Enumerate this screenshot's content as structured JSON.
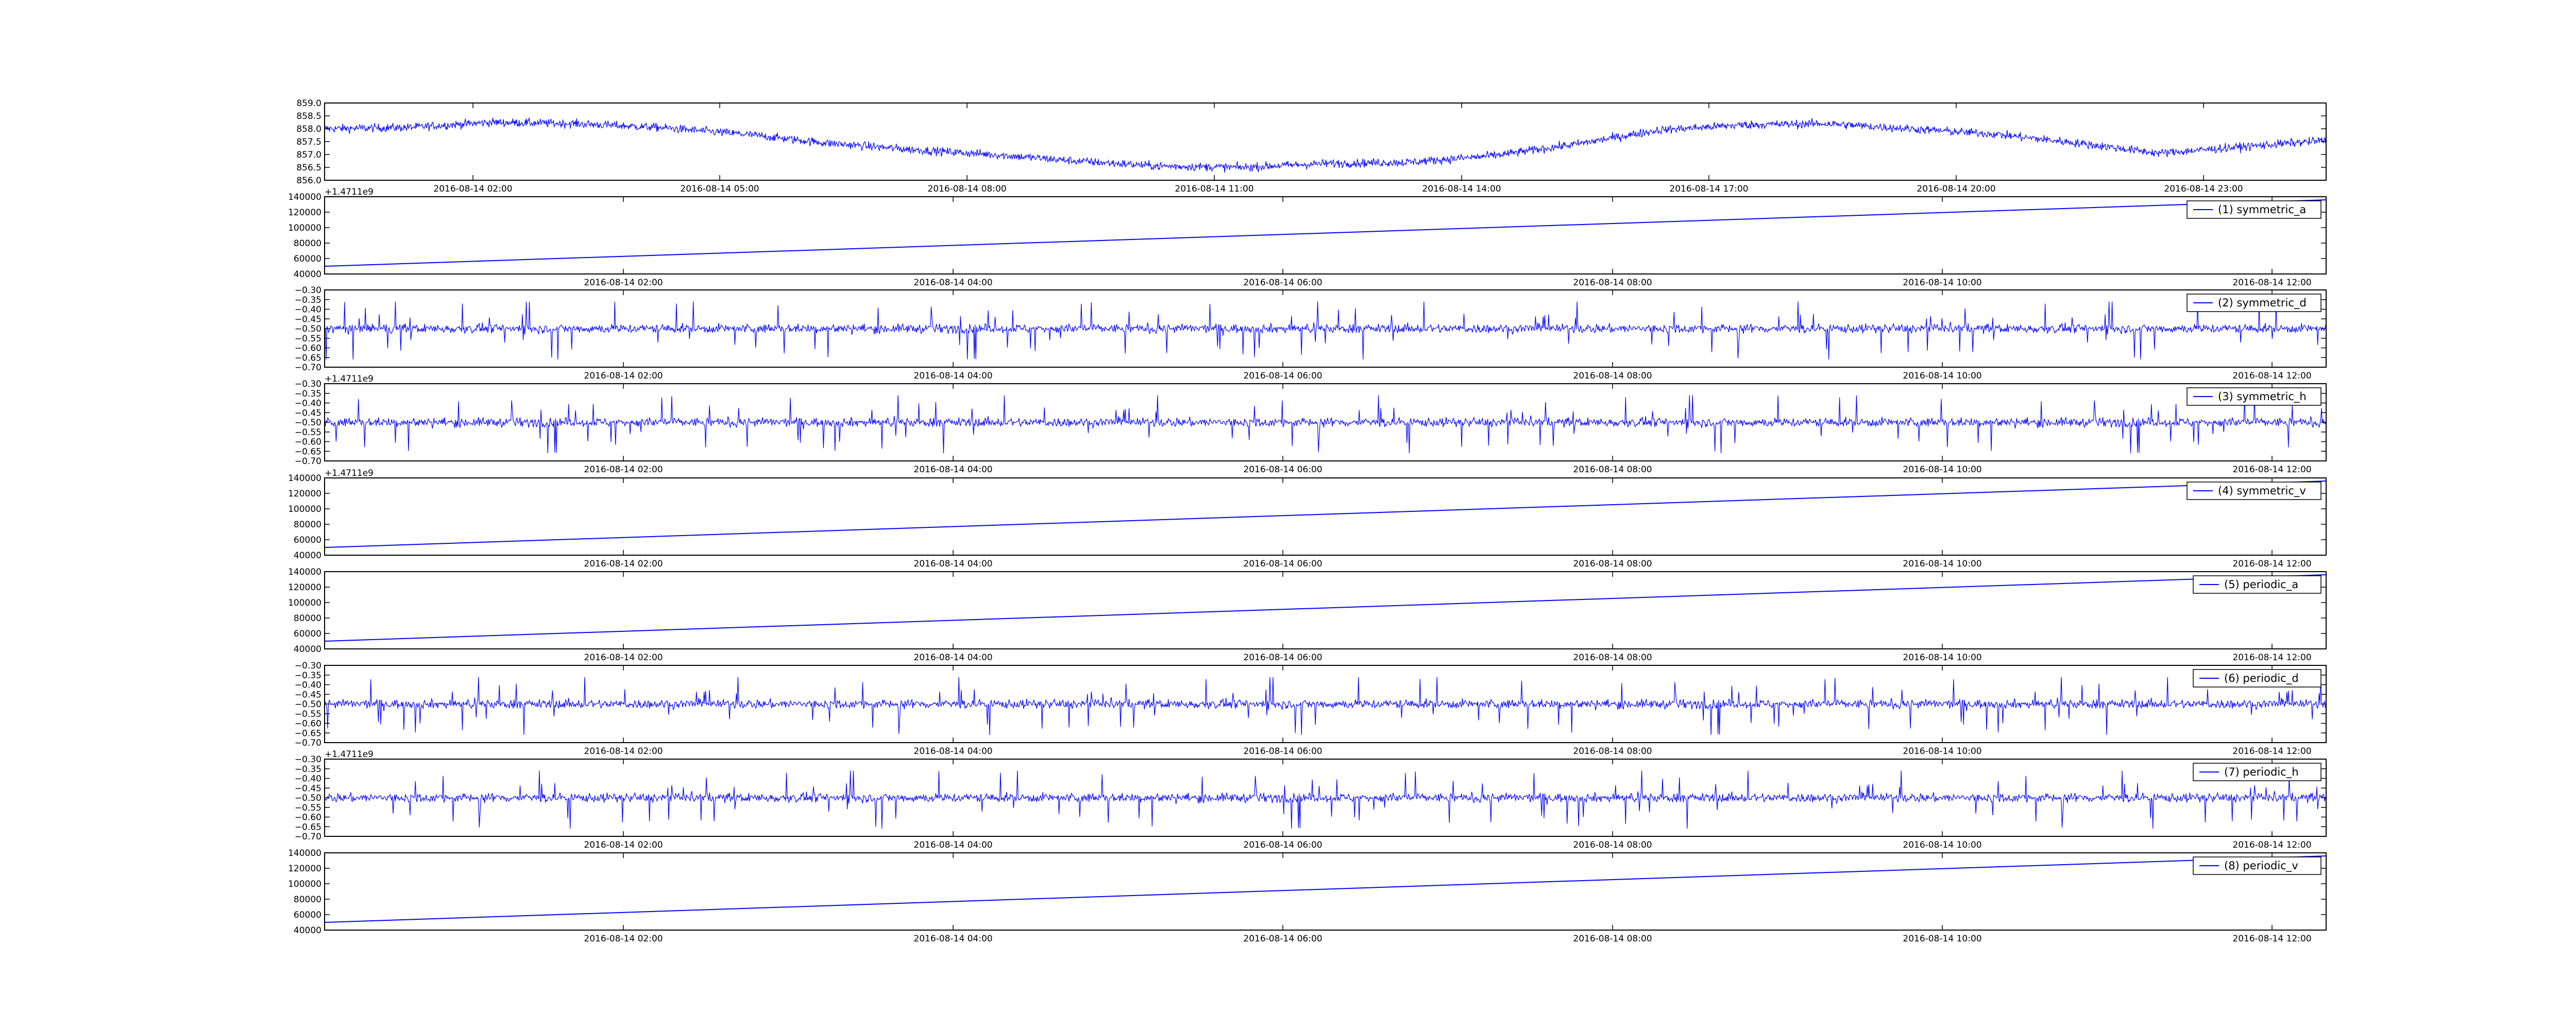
{
  "chart_data": [
    {
      "type": "line",
      "ylim": [
        856.0,
        859.0
      ],
      "yticks": [
        "856.0",
        "856.5",
        "857.0",
        "857.5",
        "858.0",
        "858.5",
        "859.0"
      ],
      "xticks": [
        "2016-08-14 02:00",
        "2016-08-14 05:00",
        "2016-08-14 08:00",
        "2016-08-14 11:00",
        "2016-08-14 14:00",
        "2016-08-14 17:00",
        "2016-08-14 20:00",
        "2016-08-14 23:00"
      ],
      "series": [
        {
          "color": "#0000ff",
          "x": [
            0,
            1,
            2,
            3,
            4,
            5,
            6,
            7,
            8,
            9,
            10,
            11,
            12,
            13,
            14,
            15,
            16,
            17,
            18,
            19,
            20,
            21,
            22,
            23,
            24
          ],
          "y": [
            858.0,
            858.05,
            858.25,
            858.2,
            858.05,
            857.8,
            857.45,
            857.2,
            857.0,
            856.75,
            856.55,
            856.5,
            856.65,
            856.7,
            856.95,
            857.4,
            857.95,
            858.15,
            858.2,
            858.0,
            857.8,
            857.45,
            857.05,
            857.3,
            857.55
          ]
        }
      ],
      "legend": ""
    },
    {
      "type": "line",
      "ylim": [
        40000,
        140000
      ],
      "offset_label": "+1.4711e9",
      "yticks": [
        "40000",
        "60000",
        "80000",
        "100000",
        "120000",
        "140000"
      ],
      "xticks": [
        "2016-08-14 02:00",
        "2016-08-14 04:00",
        "2016-08-14 06:00",
        "2016-08-14 08:00",
        "2016-08-14 10:00",
        "2016-08-14 12:00"
      ],
      "series": [
        {
          "name": "(1) symmetric_a",
          "color": "#0000ff",
          "x": [
            0,
            1
          ],
          "y": [
            50000,
            136000
          ]
        }
      ],
      "legend": "top-right"
    },
    {
      "type": "line",
      "ylim": [
        -0.7,
        -0.3
      ],
      "yticks": [
        "−0.70",
        "−0.65",
        "−0.60",
        "−0.55",
        "−0.50",
        "−0.45",
        "−0.40",
        "−0.35",
        "−0.30"
      ],
      "xticks": [
        "2016-08-14 02:00",
        "2016-08-14 04:00",
        "2016-08-14 06:00",
        "2016-08-14 08:00",
        "2016-08-14 10:00",
        "2016-08-14 12:00"
      ],
      "series": [
        {
          "name": "(2) symmetric_d",
          "color": "#0000ff",
          "mean": -0.5,
          "band": 0.04,
          "spike_min": -0.66,
          "spike_max": -0.36
        }
      ],
      "legend": "top-right"
    },
    {
      "type": "line",
      "ylim": [
        -0.7,
        -0.3
      ],
      "offset_label": "+1.4711e9",
      "yticks": [
        "−0.70",
        "−0.65",
        "−0.60",
        "−0.55",
        "−0.50",
        "−0.45",
        "−0.40",
        "−0.35",
        "−0.30"
      ],
      "xticks": [
        "2016-08-14 02:00",
        "2016-08-14 04:00",
        "2016-08-14 06:00",
        "2016-08-14 08:00",
        "2016-08-14 10:00",
        "2016-08-14 12:00"
      ],
      "series": [
        {
          "name": "(3) symmetric_h",
          "color": "#0000ff",
          "mean": -0.5,
          "band": 0.04,
          "spike_min": -0.66,
          "spike_max": -0.36
        }
      ],
      "legend": "top-right"
    },
    {
      "type": "line",
      "ylim": [
        40000,
        140000
      ],
      "offset_label": "+1.4711e9",
      "yticks": [
        "40000",
        "60000",
        "80000",
        "100000",
        "120000",
        "140000"
      ],
      "xticks": [
        "2016-08-14 02:00",
        "2016-08-14 04:00",
        "2016-08-14 06:00",
        "2016-08-14 08:00",
        "2016-08-14 10:00",
        "2016-08-14 12:00"
      ],
      "series": [
        {
          "name": "(4) symmetric_v",
          "color": "#0000ff",
          "x": [
            0,
            1
          ],
          "y": [
            50000,
            136000
          ]
        }
      ],
      "legend": "top-right"
    },
    {
      "type": "line",
      "ylim": [
        40000,
        140000
      ],
      "yticks": [
        "40000",
        "60000",
        "80000",
        "100000",
        "120000",
        "140000"
      ],
      "xticks": [
        "2016-08-14 02:00",
        "2016-08-14 04:00",
        "2016-08-14 06:00",
        "2016-08-14 08:00",
        "2016-08-14 10:00",
        "2016-08-14 12:00"
      ],
      "series": [
        {
          "name": "(5) periodic_a",
          "color": "#0000ff",
          "x": [
            0,
            1
          ],
          "y": [
            50000,
            136000
          ]
        }
      ],
      "legend": "top-right"
    },
    {
      "type": "line",
      "ylim": [
        -0.7,
        -0.3
      ],
      "yticks": [
        "−0.70",
        "−0.65",
        "−0.60",
        "−0.55",
        "−0.50",
        "−0.45",
        "−0.40",
        "−0.35",
        "−0.30"
      ],
      "xticks": [
        "2016-08-14 02:00",
        "2016-08-14 04:00",
        "2016-08-14 06:00",
        "2016-08-14 08:00",
        "2016-08-14 10:00",
        "2016-08-14 12:00"
      ],
      "series": [
        {
          "name": "(6) periodic_d",
          "color": "#0000ff",
          "mean": -0.5,
          "band": 0.04,
          "spike_min": -0.66,
          "spike_max": -0.36
        }
      ],
      "legend": "top-right"
    },
    {
      "type": "line",
      "ylim": [
        -0.7,
        -0.3
      ],
      "offset_label": "+1.4711e9",
      "yticks": [
        "−0.70",
        "−0.65",
        "−0.60",
        "−0.55",
        "−0.50",
        "−0.45",
        "−0.40",
        "−0.35",
        "−0.30"
      ],
      "xticks": [
        "2016-08-14 02:00",
        "2016-08-14 04:00",
        "2016-08-14 06:00",
        "2016-08-14 08:00",
        "2016-08-14 10:00",
        "2016-08-14 12:00"
      ],
      "series": [
        {
          "name": "(7) periodic_h",
          "color": "#0000ff",
          "mean": -0.5,
          "band": 0.04,
          "spike_min": -0.66,
          "spike_max": -0.36
        }
      ],
      "legend": "top-right"
    },
    {
      "type": "line",
      "ylim": [
        40000,
        140000
      ],
      "yticks": [
        "40000",
        "60000",
        "80000",
        "100000",
        "120000",
        "140000"
      ],
      "xticks": [
        "2016-08-14 02:00",
        "2016-08-14 04:00",
        "2016-08-14 06:00",
        "2016-08-14 08:00",
        "2016-08-14 10:00",
        "2016-08-14 12:00"
      ],
      "series": [
        {
          "name": "(8) periodic_v",
          "color": "#0000ff",
          "x": [
            0,
            1
          ],
          "y": [
            50000,
            136000
          ]
        }
      ],
      "legend": "top-right"
    }
  ]
}
